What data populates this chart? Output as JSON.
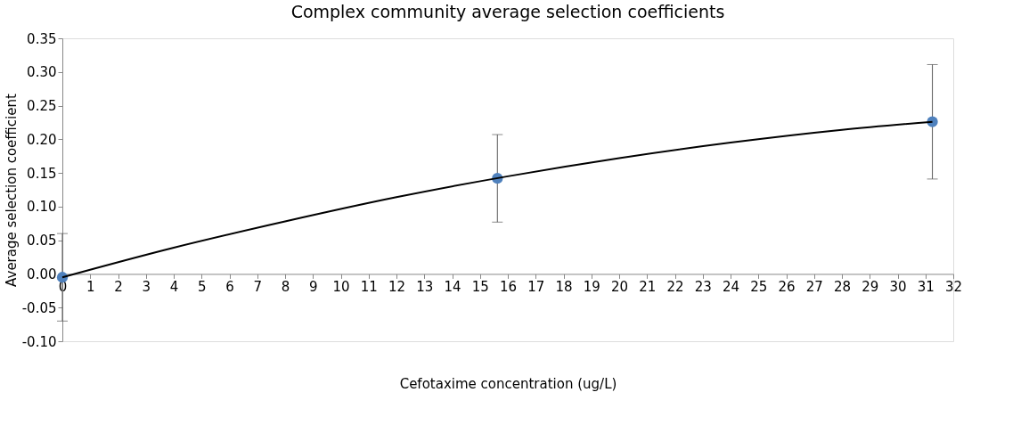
{
  "chart_data": {
    "type": "scatter",
    "title": "Complex community average selection coefficients",
    "xlabel": "Cefotaxime concentration (ug/L)",
    "ylabel": "Average selection coefficient",
    "x": [
      0,
      15.625,
      31.25
    ],
    "series": [
      {
        "color": "#4f81bd",
        "values": [
          -0.005,
          0.142,
          0.226
        ],
        "errors": [
          [
            -0.07,
            0.06
          ],
          [
            0.077,
            0.207
          ],
          [
            0.141,
            0.311
          ]
        ]
      },
      {
        "type": "line",
        "marker": "none",
        "color": "#000000",
        "x": [
          0,
          4,
          8,
          12,
          16,
          20,
          24,
          28,
          31.25
        ],
        "values": [
          -0.005,
          0.039,
          0.078,
          0.114,
          0.145,
          0.172,
          0.195,
          0.214,
          0.226
        ]
      }
    ],
    "xlim": [
      0,
      32
    ],
    "xticks": [
      0,
      1,
      2,
      3,
      4,
      5,
      6,
      7,
      8,
      9,
      10,
      11,
      12,
      13,
      14,
      15,
      16,
      17,
      18,
      19,
      20,
      21,
      22,
      23,
      24,
      25,
      26,
      27,
      28,
      29,
      30,
      31,
      32
    ],
    "ylim": [
      -0.1,
      0.35
    ],
    "yticks": [
      {
        "value": -0.1,
        "label": "-0.10"
      },
      {
        "value": -0.05,
        "label": "-0.05"
      },
      {
        "value": 0,
        "label": "0.00"
      },
      {
        "value": 0.05,
        "label": "0.05"
      },
      {
        "value": 0.1,
        "label": "0.10"
      },
      {
        "value": 0.15,
        "label": "0.15"
      },
      {
        "value": 0.2,
        "label": "0.20"
      },
      {
        "value": 0.25,
        "label": "0.25"
      },
      {
        "value": 0.3,
        "label": "0.30"
      },
      {
        "value": 0.35,
        "label": "0.35"
      }
    ],
    "marker": "circle",
    "grid": false
  }
}
